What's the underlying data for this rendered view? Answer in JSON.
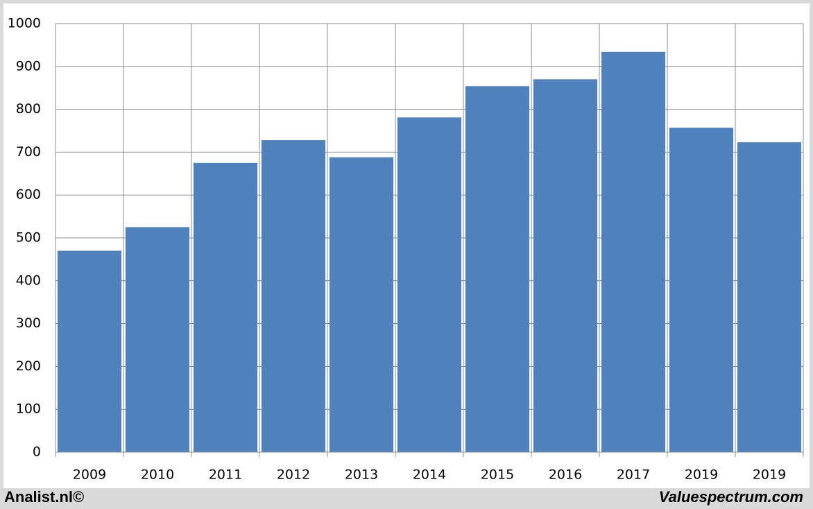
{
  "chart_data": {
    "type": "bar",
    "categories": [
      "2009",
      "2010",
      "2011",
      "2012",
      "2013",
      "2014",
      "2015",
      "2016",
      "2017",
      "2019",
      "2019"
    ],
    "values": [
      470,
      525,
      675,
      728,
      688,
      781,
      854,
      870,
      934,
      757,
      723
    ],
    "color": "#4f81bd",
    "ylim": [
      0,
      1000
    ],
    "yticks": [
      0,
      100,
      200,
      300,
      400,
      500,
      600,
      700,
      800,
      900,
      1000
    ],
    "grid": true,
    "footer_left": "Analist.nl©",
    "footer_right": "Valuespectrum.com"
  }
}
